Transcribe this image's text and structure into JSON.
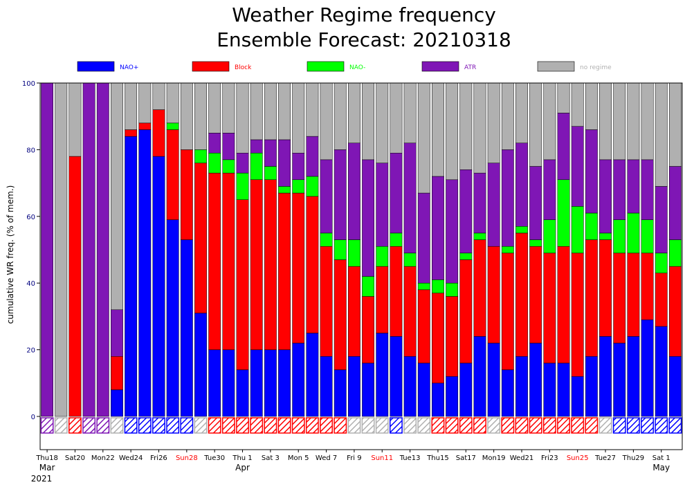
{
  "chart_data": {
    "type": "bar",
    "stacked": true,
    "title": "Weather Regime frequency",
    "subtitle": "Ensemble Forecast: 20210318",
    "ylabel": "cumulative WR freq. (% of mem.)",
    "ylim": [
      -10,
      100
    ],
    "yticks": [
      0,
      20,
      40,
      60,
      80,
      100
    ],
    "grid": false,
    "legend_position": "top",
    "colors": {
      "NAO+": "#0000ff",
      "Block": "#ff0000",
      "NAO-": "#00ff00",
      "ATR": "#7f16b5",
      "no regime": "#b0b0b0"
    },
    "series": [
      {
        "name": "NAO+",
        "values": [
          0,
          0,
          0,
          0,
          0,
          8,
          84,
          86,
          78,
          59,
          53,
          31,
          20,
          20,
          14,
          20,
          20,
          20,
          22,
          25,
          18,
          14,
          18,
          16,
          25,
          24,
          18,
          16,
          10,
          12,
          16,
          24,
          22,
          14,
          18,
          22,
          16,
          16,
          12,
          18,
          24,
          22,
          24,
          29,
          27,
          18
        ]
      },
      {
        "name": "Block",
        "values": [
          0,
          0,
          78,
          0,
          0,
          10,
          2,
          2,
          14,
          27,
          27,
          45,
          53,
          53,
          51,
          51,
          51,
          47,
          45,
          41,
          33,
          33,
          27,
          20,
          20,
          27,
          27,
          22,
          27,
          24,
          31,
          29,
          29,
          35,
          37,
          29,
          33,
          35,
          37,
          35,
          29,
          27,
          25,
          20,
          16,
          27
        ]
      },
      {
        "name": "NAO-",
        "values": [
          0,
          0,
          0,
          0,
          0,
          0,
          0,
          0,
          0,
          2,
          0,
          4,
          6,
          4,
          8,
          8,
          4,
          2,
          4,
          6,
          4,
          6,
          8,
          6,
          6,
          4,
          4,
          2,
          4,
          4,
          2,
          2,
          0,
          2,
          2,
          2,
          10,
          20,
          14,
          8,
          2,
          10,
          12,
          10,
          6,
          8
        ]
      },
      {
        "name": "ATR",
        "values": [
          100,
          0,
          0,
          100,
          100,
          14,
          0,
          0,
          0,
          0,
          0,
          0,
          6,
          8,
          6,
          4,
          8,
          14,
          8,
          12,
          22,
          27,
          29,
          35,
          25,
          24,
          33,
          27,
          31,
          31,
          25,
          18,
          25,
          29,
          25,
          22,
          18,
          20,
          24,
          25,
          22,
          18,
          16,
          18,
          20,
          22
        ]
      },
      {
        "name": "no regime",
        "values": [
          0,
          100,
          22,
          0,
          0,
          68,
          14,
          12,
          8,
          12,
          20,
          20,
          15,
          15,
          21,
          17,
          17,
          17,
          21,
          16,
          23,
          20,
          18,
          23,
          24,
          21,
          18,
          33,
          28,
          29,
          26,
          27,
          24,
          20,
          18,
          25,
          23,
          9,
          13,
          14,
          23,
          23,
          23,
          23,
          31,
          25
        ]
      }
    ],
    "regime_markers": [
      "ATR",
      "no regime",
      "Block",
      "ATR",
      "ATR",
      "no regime",
      "NAO+",
      "NAO+",
      "NAO+",
      "NAO+",
      "NAO+",
      "no regime",
      "Block",
      "Block",
      "Block",
      "Block",
      "Block",
      "Block",
      "Block",
      "Block",
      "Block",
      "Block",
      "no regime",
      "no regime",
      "no regime",
      "NAO+",
      "no regime",
      "no regime",
      "Block",
      "Block",
      "Block",
      "Block",
      "no regime",
      "Block",
      "Block",
      "Block",
      "Block",
      "Block",
      "Block",
      "Block",
      "no regime",
      "NAO+",
      "NAO+",
      "NAO+",
      "NAO+",
      "NAO+"
    ],
    "x_tick_labels": [
      {
        "index": 0,
        "text": "Thu18",
        "color": "#000000"
      },
      {
        "index": 2,
        "text": "Sat20",
        "color": "#000000"
      },
      {
        "index": 4,
        "text": "Mon22",
        "color": "#000000"
      },
      {
        "index": 6,
        "text": "Wed24",
        "color": "#000000"
      },
      {
        "index": 8,
        "text": "Fri26",
        "color": "#000000"
      },
      {
        "index": 10,
        "text": "Sun28",
        "color": "#ff0000"
      },
      {
        "index": 12,
        "text": "Tue30",
        "color": "#000000"
      },
      {
        "index": 14,
        "text": "Thu 1",
        "color": "#000000"
      },
      {
        "index": 16,
        "text": "Sat 3",
        "color": "#000000"
      },
      {
        "index": 18,
        "text": "Mon 5",
        "color": "#000000"
      },
      {
        "index": 20,
        "text": "Wed 7",
        "color": "#000000"
      },
      {
        "index": 22,
        "text": "Fri 9",
        "color": "#000000"
      },
      {
        "index": 24,
        "text": "Sun11",
        "color": "#ff0000"
      },
      {
        "index": 26,
        "text": "Tue13",
        "color": "#000000"
      },
      {
        "index": 28,
        "text": "Thu15",
        "color": "#000000"
      },
      {
        "index": 30,
        "text": "Sat17",
        "color": "#000000"
      },
      {
        "index": 32,
        "text": "Mon19",
        "color": "#000000"
      },
      {
        "index": 34,
        "text": "Wed21",
        "color": "#000000"
      },
      {
        "index": 36,
        "text": "Fri23",
        "color": "#000000"
      },
      {
        "index": 38,
        "text": "Sun25",
        "color": "#ff0000"
      },
      {
        "index": 40,
        "text": "Tue27",
        "color": "#000000"
      },
      {
        "index": 42,
        "text": "Thu29",
        "color": "#000000"
      },
      {
        "index": 44,
        "text": "Sat 1",
        "color": "#000000"
      }
    ],
    "month_labels": [
      {
        "index": 0,
        "text": "Mar"
      },
      {
        "index": 14,
        "text": "Apr"
      },
      {
        "index": 44,
        "text": "May"
      }
    ],
    "year_label": "2021"
  }
}
